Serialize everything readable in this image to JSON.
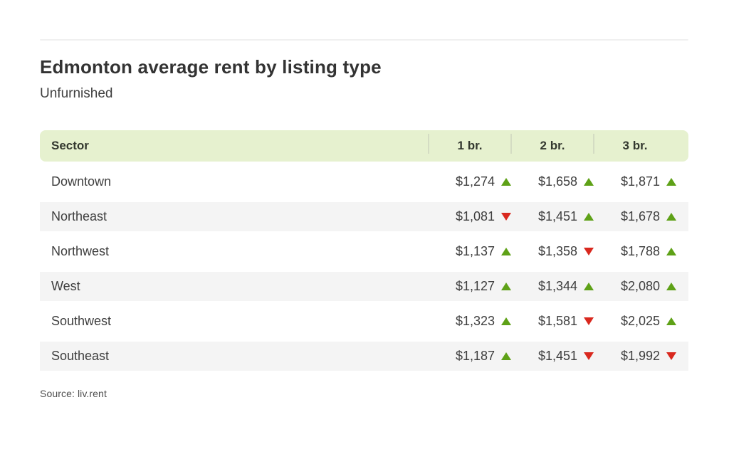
{
  "colors": {
    "header_bg": "#e6f1cf",
    "separator_color": "#d4dcc3",
    "stripe_bg": "#f4f4f4",
    "up_color": "#5ea117",
    "down_color": "#d9281e",
    "title_color": "#333333"
  },
  "chart_data": {
    "type": "table",
    "title": "Edmonton average rent by listing type",
    "subtitle": "Unfurnished",
    "source": "Source: liv.rent",
    "columns": [
      "Sector",
      "1 br.",
      "2 br.",
      "3 br."
    ],
    "rows": [
      {
        "sector": "Downtown",
        "values": [
          {
            "price": "$1,274",
            "trend": "up"
          },
          {
            "price": "$1,658",
            "trend": "up"
          },
          {
            "price": "$1,871",
            "trend": "up"
          }
        ]
      },
      {
        "sector": "Northeast",
        "values": [
          {
            "price": "$1,081",
            "trend": "down"
          },
          {
            "price": "$1,451",
            "trend": "up"
          },
          {
            "price": "$1,678",
            "trend": "up"
          }
        ]
      },
      {
        "sector": "Northwest",
        "values": [
          {
            "price": "$1,137",
            "trend": "up"
          },
          {
            "price": "$1,358",
            "trend": "down"
          },
          {
            "price": "$1,788",
            "trend": "up"
          }
        ]
      },
      {
        "sector": "West",
        "values": [
          {
            "price": "$1,127",
            "trend": "up"
          },
          {
            "price": "$1,344",
            "trend": "up"
          },
          {
            "price": "$2,080",
            "trend": "up"
          }
        ]
      },
      {
        "sector": "Southwest",
        "values": [
          {
            "price": "$1,323",
            "trend": "up"
          },
          {
            "price": "$1,581",
            "trend": "down"
          },
          {
            "price": "$2,025",
            "trend": "up"
          }
        ]
      },
      {
        "sector": "Southeast",
        "values": [
          {
            "price": "$1,187",
            "trend": "up"
          },
          {
            "price": "$1,451",
            "trend": "down"
          },
          {
            "price": "$1,992",
            "trend": "down"
          }
        ]
      }
    ]
  }
}
